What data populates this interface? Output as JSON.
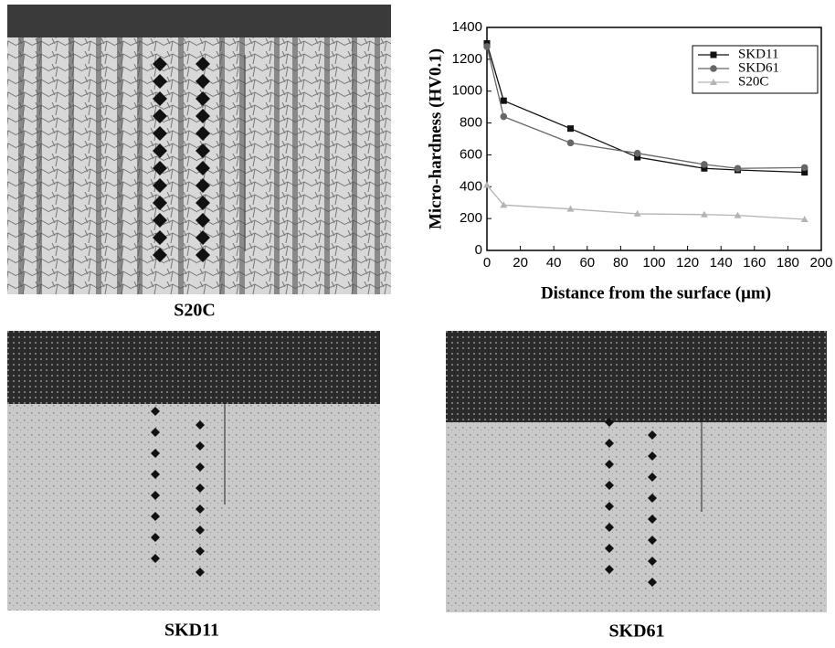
{
  "chart_data": {
    "type": "line",
    "xlabel": "Distance from the surface (μm)",
    "ylabel": "Micro-hardness (HV0.1)",
    "x": [
      0,
      10,
      50,
      90,
      130,
      150,
      190
    ],
    "series": [
      {
        "name": "SKD11",
        "color": "#111111",
        "marker": "square",
        "values": [
          1300,
          940,
          765,
          585,
          515,
          505,
          490
        ]
      },
      {
        "name": "SKD61",
        "color": "#666666",
        "marker": "circle",
        "values": [
          1280,
          840,
          675,
          610,
          540,
          515,
          520
        ]
      },
      {
        "name": "S20C",
        "color": "#b4b4b4",
        "marker": "triangle",
        "values": [
          410,
          285,
          260,
          230,
          225,
          220,
          195
        ]
      }
    ],
    "xlim": [
      0,
      200
    ],
    "xticks": [
      0,
      20,
      40,
      60,
      80,
      100,
      120,
      140,
      160,
      180,
      200
    ],
    "ylim": [
      0,
      1400
    ],
    "yticks": [
      0,
      200,
      400,
      600,
      800,
      1000,
      1200,
      1400
    ],
    "grid": false,
    "legend": "upper right"
  },
  "captions": [
    "S20C",
    "SKD11",
    "SKD61"
  ]
}
